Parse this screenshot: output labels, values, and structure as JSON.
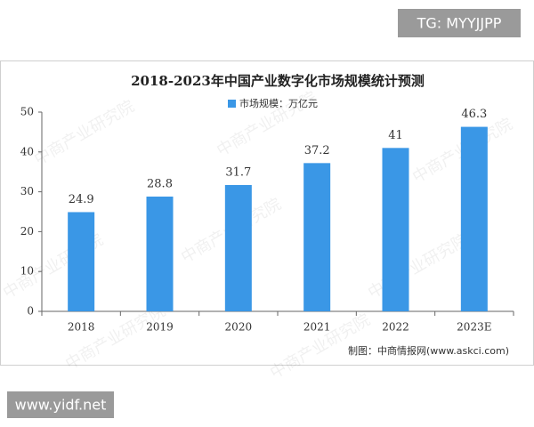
{
  "overlay": {
    "top_right": "TG: MYYJJPP",
    "bottom_left": "www.yidf.net"
  },
  "chart_data": {
    "type": "bar",
    "title": "2018-2023年中国产业数字化市场规模统计预测",
    "categories": [
      "2018",
      "2019",
      "2020",
      "2021",
      "2022",
      "2023E"
    ],
    "series": [
      {
        "name": "市场规模：万亿元",
        "color": "#3a97e6",
        "values": [
          24.9,
          28.8,
          31.7,
          37.2,
          41.0,
          46.3
        ]
      }
    ],
    "ylim": [
      0,
      50
    ],
    "yticks": [
      0,
      10,
      20,
      30,
      40,
      50
    ],
    "source": "制图：中商情报网(www.askci.com)",
    "watermark": "中商产业研究院"
  }
}
